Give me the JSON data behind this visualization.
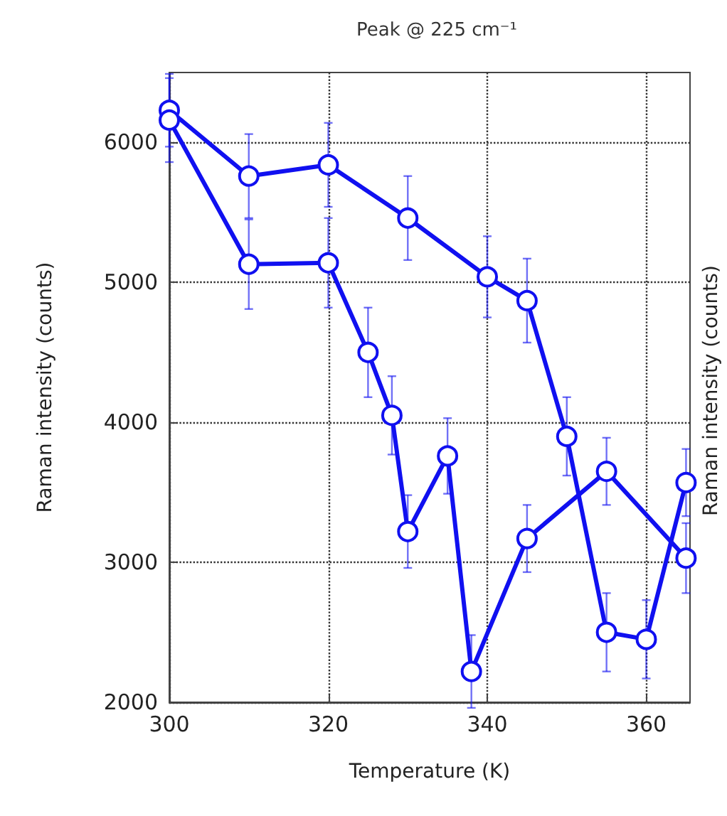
{
  "chart_data": {
    "type": "line",
    "title": "Peak @ 225 cm⁻¹",
    "xlabel": "Temperature (K)",
    "ylabel": "Raman intensity (counts)",
    "annotations": [
      "Raman intensity (counts)"
    ],
    "series": [
      {
        "color": "#1010f0",
        "x": [
          300,
          310,
          320,
          330,
          340,
          345,
          350,
          355,
          360,
          365
        ],
        "values": [
          6230,
          5760,
          5840,
          5460,
          5040,
          4870,
          3900,
          2500,
          2450,
          3570
        ],
        "errors": [
          260,
          300,
          300,
          300,
          290,
          300,
          280,
          280,
          280,
          240
        ]
      },
      {
        "color": "#1010f0",
        "x": [
          300,
          310,
          320,
          325,
          328,
          330,
          335,
          338,
          345,
          355,
          365
        ],
        "values": [
          6160,
          5130,
          5140,
          4500,
          4050,
          3220,
          3760,
          2220,
          3170,
          3650,
          3030
        ],
        "errors": [
          300,
          320,
          320,
          320,
          280,
          260,
          270,
          260,
          240,
          240,
          250
        ]
      }
    ],
    "xlim": [
      300,
      365.5
    ],
    "xticks": [
      300,
      320,
      340,
      360
    ],
    "ylim": [
      2000,
      6500
    ],
    "yticks": [
      2000,
      3000,
      4000,
      5000,
      6000
    ],
    "grid": true,
    "marker": "circle",
    "line_style": "solid"
  }
}
